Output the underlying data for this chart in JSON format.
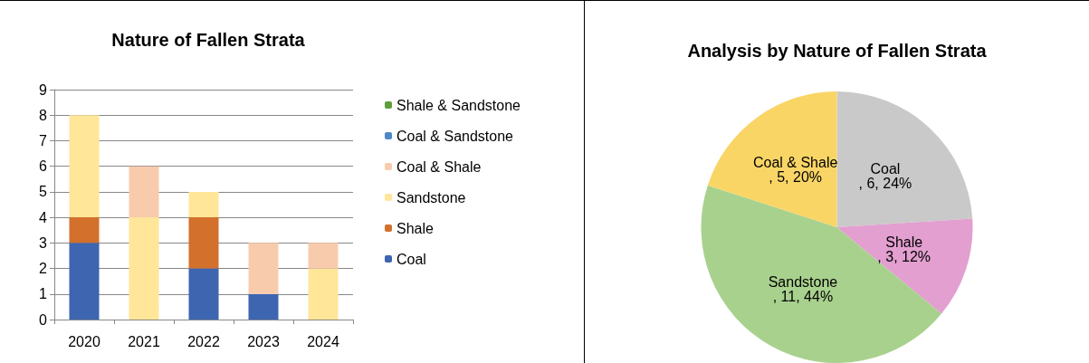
{
  "chart_data": [
    {
      "type": "bar",
      "title": "Nature of Fallen Strata",
      "categories": [
        "2020",
        "2021",
        "2022",
        "2023",
        "2024"
      ],
      "stacked": true,
      "ylim": [
        0,
        9
      ],
      "yticks": [
        0,
        1,
        2,
        3,
        4,
        5,
        6,
        7,
        8,
        9
      ],
      "grid": "y",
      "legend": "right",
      "series": [
        {
          "name": "Coal",
          "color": "#3d65b0",
          "values": [
            3,
            0,
            2,
            1,
            0
          ]
        },
        {
          "name": "Shale",
          "color": "#d2702c",
          "values": [
            1,
            0,
            2,
            0,
            0
          ]
        },
        {
          "name": "Sandstone",
          "color": "#ffe699",
          "values": [
            4,
            4,
            1,
            0,
            2
          ]
        },
        {
          "name": "Coal & Shale",
          "color": "#f8cbad",
          "values": [
            0,
            2,
            0,
            2,
            1
          ]
        },
        {
          "name": "Coal & Sandstone",
          "color": "#4f88c6",
          "values": [
            0,
            0,
            0,
            0,
            0
          ]
        },
        {
          "name": "Shale & Sandstone",
          "color": "#5e9e3c",
          "values": [
            0,
            0,
            0,
            0,
            0
          ]
        }
      ]
    },
    {
      "type": "pie",
      "title": "Analysis by Nature of Fallen Strata",
      "categories": [
        "Coal",
        "Shale",
        "Sandstone",
        "Coal & Shale"
      ],
      "values": [
        6,
        3,
        11,
        5
      ],
      "colors": [
        "#c9c9c9",
        "#e29fd0",
        "#a9d18e",
        "#f9d566"
      ],
      "value_labels": [
        ", 6, 24%",
        ", 3, 12%",
        ", 11, 44%",
        ", 5, 20%"
      ]
    }
  ]
}
